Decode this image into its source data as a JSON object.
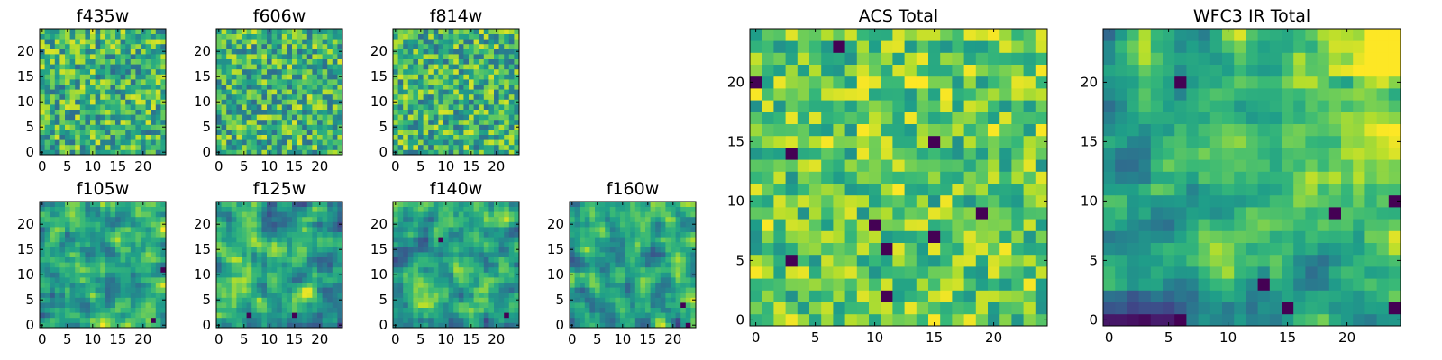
{
  "chart_data": [
    {
      "type": "heatmap",
      "title": "f435w",
      "seed": 11,
      "style": "noise",
      "hot": [],
      "xticks": [
        "0",
        "5",
        "10",
        "15",
        "20"
      ],
      "yticks": [
        "0",
        "5",
        "10",
        "15",
        "20"
      ],
      "grid": false,
      "colormap": "viridis"
    },
    {
      "type": "heatmap",
      "title": "f606w",
      "seed": 23,
      "style": "noise",
      "hot": [],
      "xticks": [
        "0",
        "5",
        "10",
        "15",
        "20"
      ],
      "yticks": [
        "0",
        "5",
        "10",
        "15",
        "20"
      ],
      "grid": false,
      "colormap": "viridis"
    },
    {
      "type": "heatmap",
      "title": "f814w",
      "seed": 37,
      "style": "noise",
      "hot": [],
      "xticks": [
        "0",
        "5",
        "10",
        "15",
        "20"
      ],
      "yticks": [
        "0",
        "5",
        "10",
        "15",
        "20"
      ],
      "grid": false,
      "colormap": "viridis"
    },
    {
      "type": "heatmap",
      "title": "f105w",
      "seed": 41,
      "style": "smooth",
      "hot": [
        [
          22,
          1
        ],
        [
          24,
          11
        ]
      ],
      "xticks": [
        "0",
        "5",
        "10",
        "15",
        "20"
      ],
      "yticks": [
        "0",
        "5",
        "10",
        "15",
        "20"
      ],
      "grid": false,
      "colormap": "viridis"
    },
    {
      "type": "heatmap",
      "title": "f125w",
      "seed": 53,
      "style": "smooth",
      "hot": [
        [
          6,
          2
        ],
        [
          15,
          2
        ]
      ],
      "xticks": [
        "0",
        "5",
        "10",
        "15",
        "20"
      ],
      "yticks": [
        "0",
        "5",
        "10",
        "15",
        "20"
      ],
      "grid": false,
      "colormap": "viridis"
    },
    {
      "type": "heatmap",
      "title": "f140w",
      "seed": 67,
      "style": "smooth",
      "hot": [
        [
          9,
          17
        ],
        [
          22,
          2
        ]
      ],
      "xticks": [
        "0",
        "5",
        "10",
        "15",
        "20"
      ],
      "yticks": [
        "0",
        "5",
        "10",
        "15",
        "20"
      ],
      "grid": false,
      "colormap": "viridis"
    },
    {
      "type": "heatmap",
      "title": "f160w",
      "seed": 79,
      "style": "smooth",
      "hot": [
        [
          23,
          0
        ],
        [
          22,
          4
        ]
      ],
      "xticks": [
        "0",
        "5",
        "10",
        "15",
        "20"
      ],
      "yticks": [
        "0",
        "5",
        "10",
        "15",
        "20"
      ],
      "grid": false,
      "colormap": "viridis"
    },
    {
      "type": "heatmap",
      "title": "ACS Total",
      "seed": 89,
      "style": "noise_bright",
      "hot": [
        [
          7,
          23
        ],
        [
          0,
          20
        ],
        [
          15,
          15
        ],
        [
          3,
          14
        ],
        [
          10,
          8
        ],
        [
          19,
          9
        ],
        [
          15,
          7
        ],
        [
          11,
          6
        ],
        [
          11,
          2
        ],
        [
          3,
          5
        ]
      ],
      "xticks": [
        "0",
        "5",
        "10",
        "15",
        "20"
      ],
      "yticks": [
        "0",
        "5",
        "10",
        "15",
        "20"
      ],
      "grid": false,
      "colormap": "viridis"
    },
    {
      "type": "heatmap",
      "title": "WFC3 IR Total",
      "seed": 97,
      "style": "gradient",
      "hot": [
        [
          6,
          20
        ],
        [
          24,
          10
        ],
        [
          19,
          9
        ],
        [
          13,
          3
        ],
        [
          6,
          0
        ],
        [
          24,
          1
        ],
        [
          15,
          1
        ]
      ],
      "xticks": [
        "0",
        "5",
        "10",
        "15",
        "20"
      ],
      "yticks": [
        "0",
        "5",
        "10",
        "15",
        "20"
      ],
      "grid": false,
      "colormap": "viridis"
    }
  ]
}
